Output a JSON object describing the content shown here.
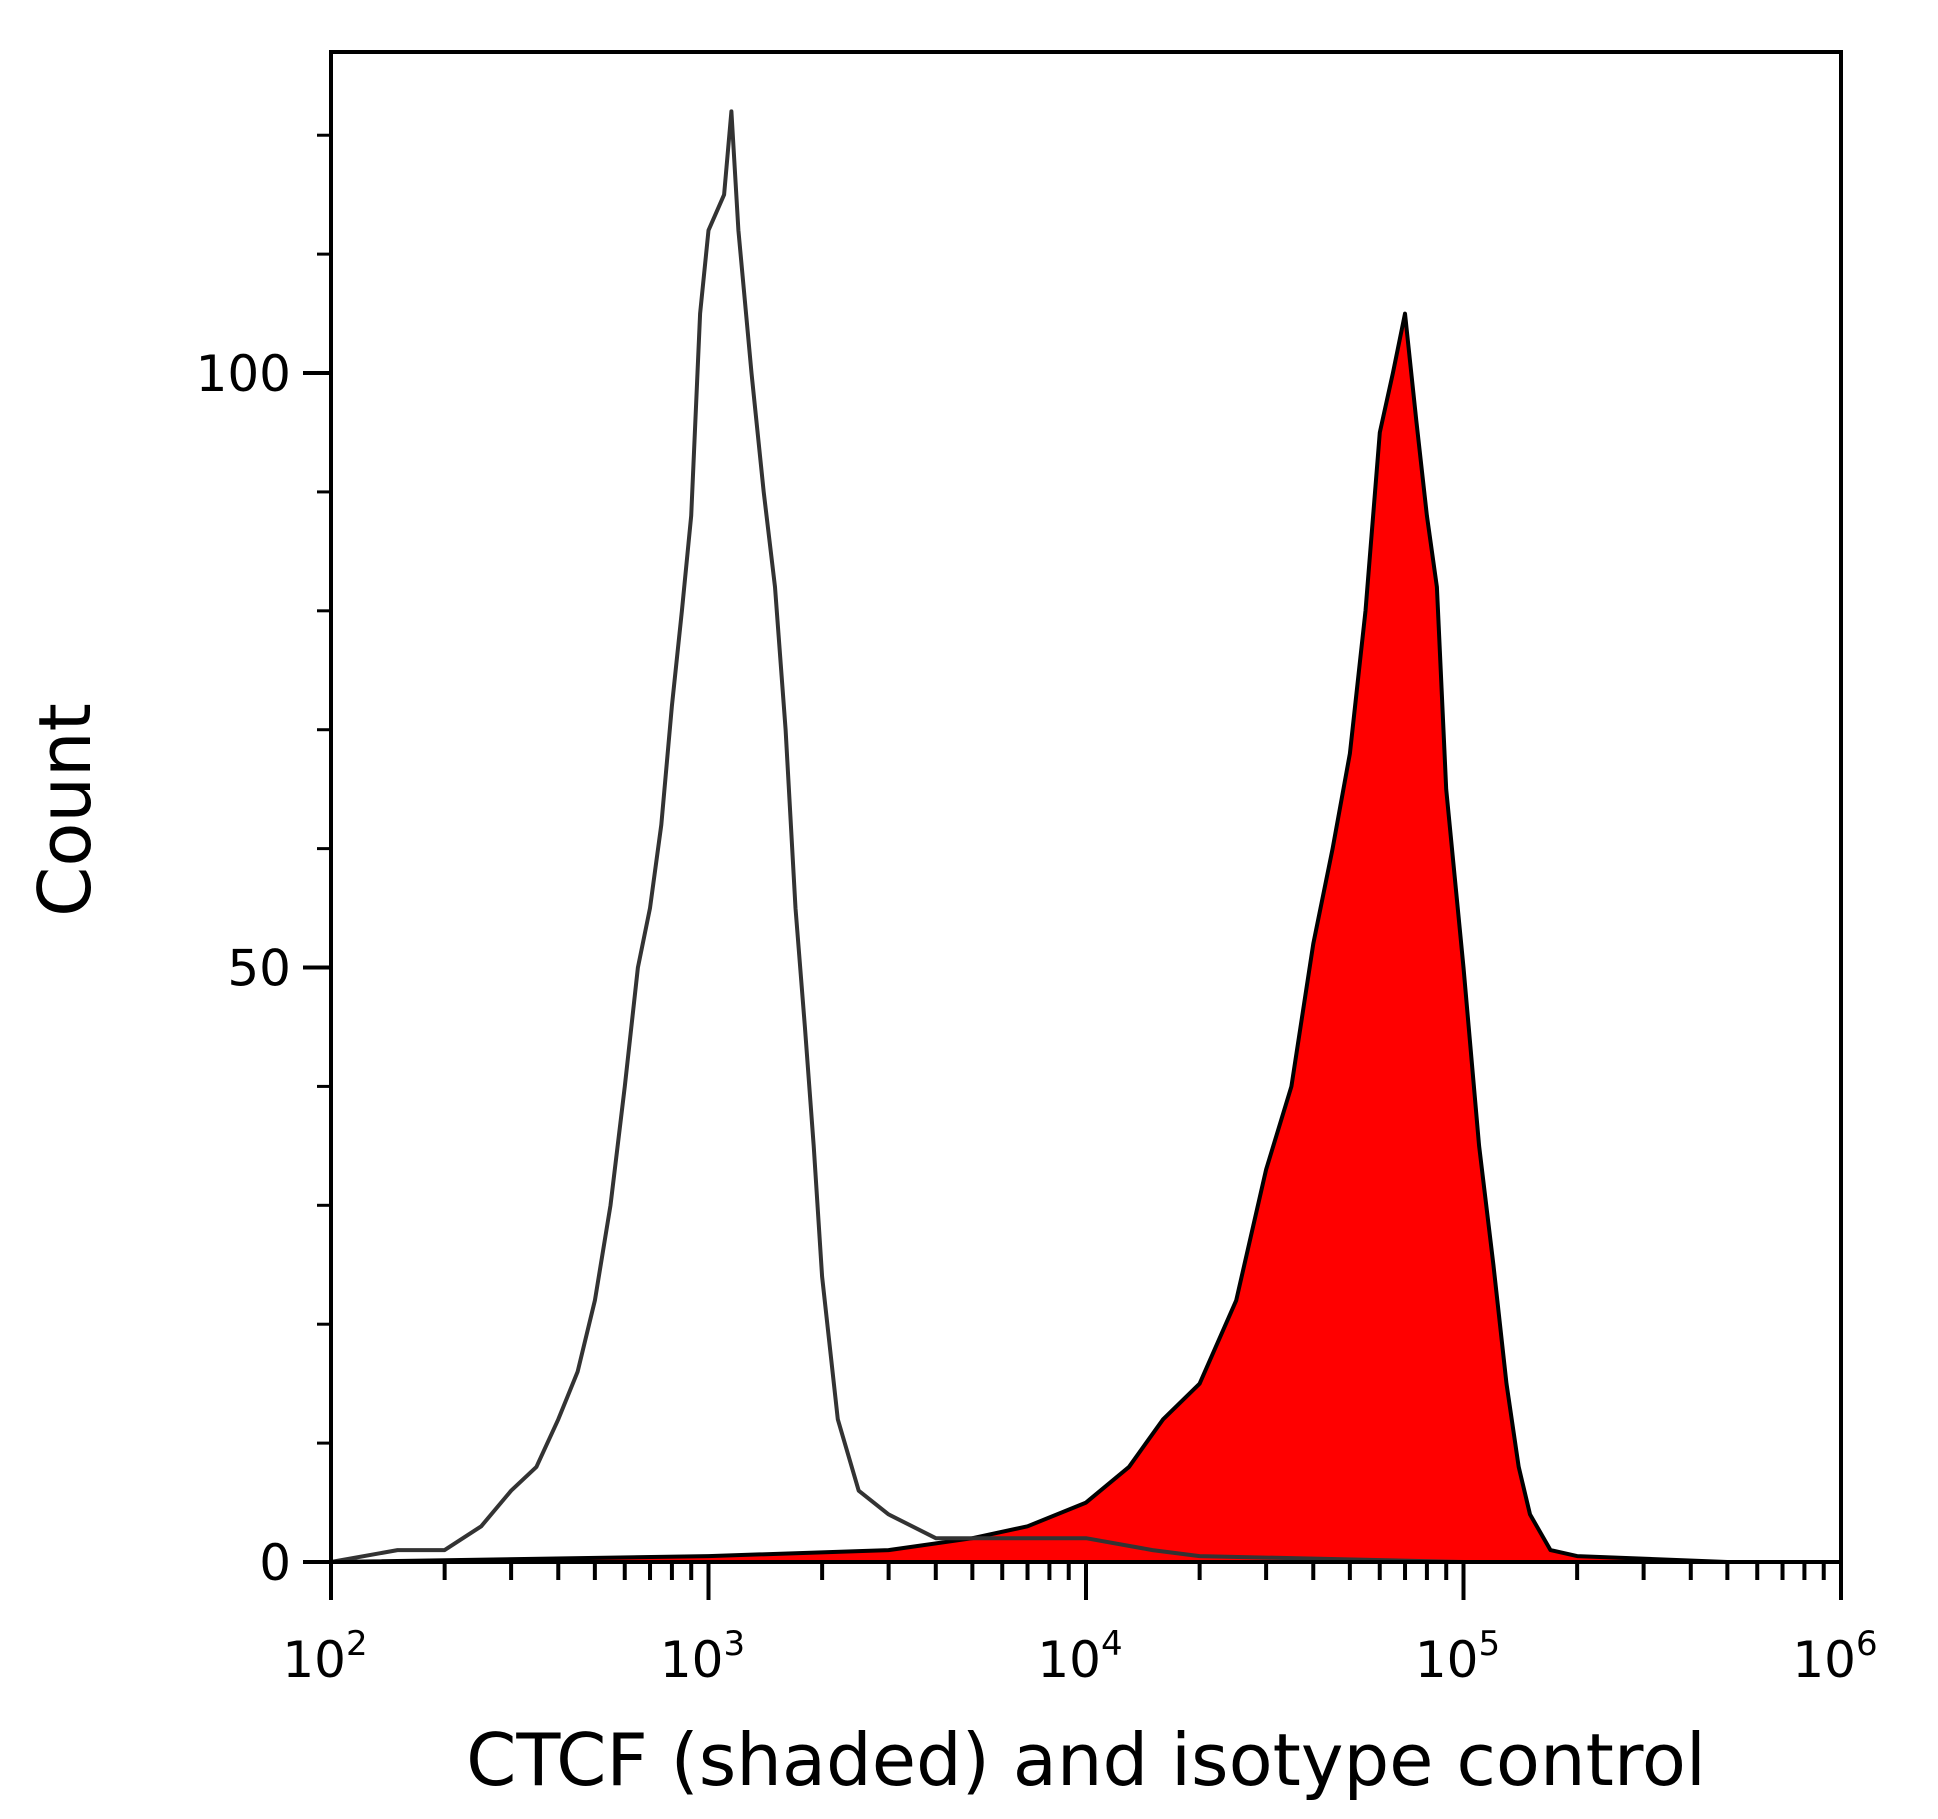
{
  "chart_data": {
    "type": "area",
    "title": "",
    "xlabel": "CTCF (shaded) and isotype control",
    "ylabel": "Count",
    "x_scale": "log",
    "xlim": [
      100,
      1000000
    ],
    "ylim": [
      0,
      127
    ],
    "grid": false,
    "x_ticks": [
      {
        "value": 100,
        "base": "10",
        "exp": "2"
      },
      {
        "value": 1000,
        "base": "10",
        "exp": "3"
      },
      {
        "value": 10000,
        "base": "10",
        "exp": "4"
      },
      {
        "value": 100000,
        "base": "10",
        "exp": "5"
      },
      {
        "value": 1000000,
        "base": "10",
        "exp": "6"
      }
    ],
    "y_ticks": [
      {
        "value": 0,
        "label": "0"
      },
      {
        "value": 50,
        "label": "50"
      },
      {
        "value": 100,
        "label": "100"
      }
    ],
    "series": [
      {
        "name": "isotype control",
        "style": "outline",
        "color": "#333333",
        "x": [
          100,
          150,
          200,
          250,
          300,
          350,
          400,
          450,
          500,
          550,
          600,
          650,
          700,
          750,
          800,
          850,
          900,
          950,
          1000,
          1100,
          1150,
          1200,
          1300,
          1400,
          1500,
          1600,
          1700,
          1800,
          1900,
          2000,
          2200,
          2500,
          3000,
          4000,
          6000,
          10000,
          15000,
          20000,
          100000,
          500000
        ],
        "y": [
          0,
          1,
          1,
          3,
          6,
          8,
          12,
          16,
          22,
          30,
          40,
          50,
          55,
          62,
          72,
          80,
          88,
          105,
          112,
          115,
          122,
          112,
          100,
          90,
          82,
          70,
          55,
          45,
          35,
          24,
          12,
          6,
          4,
          2,
          2,
          2,
          1,
          0.5,
          0,
          0
        ]
      },
      {
        "name": "CTCF",
        "style": "shaded",
        "color": "#ff0000",
        "x": [
          100,
          1000,
          3000,
          5000,
          7000,
          10000,
          13000,
          16000,
          20000,
          25000,
          30000,
          35000,
          40000,
          45000,
          50000,
          55000,
          60000,
          65000,
          70000,
          75000,
          80000,
          85000,
          90000,
          100000,
          110000,
          120000,
          130000,
          140000,
          150000,
          170000,
          200000,
          500000
        ],
        "y": [
          0,
          0.5,
          1,
          2,
          3,
          5,
          8,
          12,
          15,
          22,
          33,
          40,
          52,
          60,
          68,
          80,
          95,
          100,
          105,
          96,
          88,
          82,
          65,
          50,
          35,
          25,
          15,
          8,
          4,
          1,
          0.5,
          0
        ]
      }
    ]
  }
}
